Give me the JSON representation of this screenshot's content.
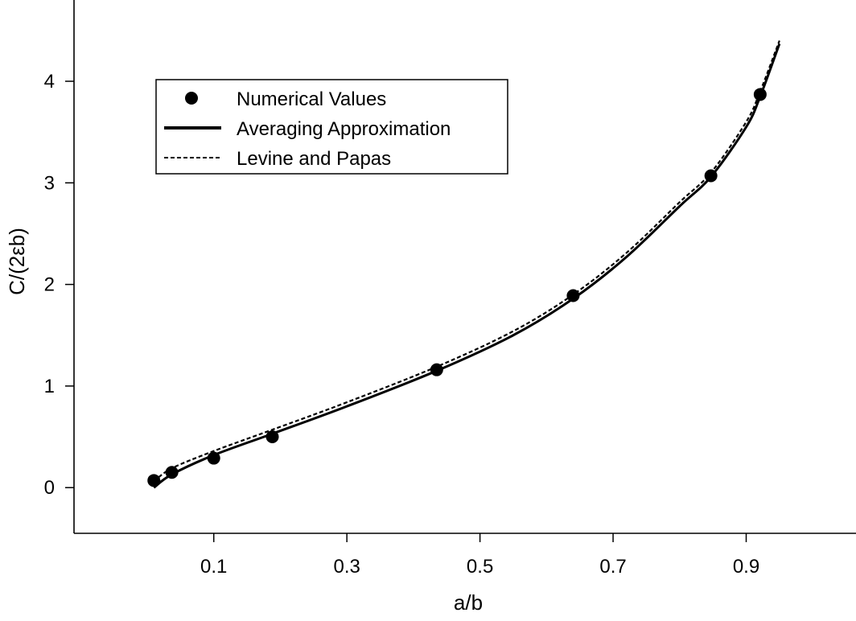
{
  "chart_data": {
    "type": "line",
    "title": "",
    "xlabel": "a/b",
    "ylabel": "C/(2εb)",
    "xlim": [
      -0.11,
      1.065
    ],
    "ylim": [
      -0.45,
      4.8
    ],
    "xticks": [
      0.1,
      0.3,
      0.5,
      0.7,
      0.9
    ],
    "xtick_labels": [
      "0.1",
      "0.3",
      "0.5",
      "0.7",
      "0.9"
    ],
    "yticks": [
      0,
      1,
      2,
      3,
      4
    ],
    "ytick_labels": [
      "0",
      "1",
      "2",
      "3",
      "4"
    ],
    "grid": false,
    "legend_position": "top-left",
    "series": [
      {
        "name": "Numerical Values",
        "style": "markers",
        "color": "#000000",
        "x": [
          0.01,
          0.037,
          0.1,
          0.188,
          0.435,
          0.64,
          0.847,
          0.921
        ],
        "y": [
          0.07,
          0.15,
          0.29,
          0.5,
          1.16,
          1.89,
          3.07,
          3.87
        ]
      },
      {
        "name": "Averaging Approximation",
        "style": "solid",
        "color": "#000000",
        "x": [
          0.01,
          0.037,
          0.1,
          0.188,
          0.3,
          0.435,
          0.55,
          0.64,
          0.72,
          0.8,
          0.847,
          0.9,
          0.921,
          0.95
        ],
        "y": [
          0.0,
          0.13,
          0.32,
          0.53,
          0.8,
          1.15,
          1.5,
          1.86,
          2.27,
          2.77,
          3.06,
          3.55,
          3.85,
          4.37
        ]
      },
      {
        "name": "Levine and Papas",
        "style": "dashed",
        "color": "#000000",
        "x": [
          0.01,
          0.037,
          0.1,
          0.188,
          0.3,
          0.435,
          0.55,
          0.64,
          0.72,
          0.8,
          0.847,
          0.9,
          0.921,
          0.95
        ],
        "y": [
          0.06,
          0.19,
          0.36,
          0.57,
          0.84,
          1.19,
          1.54,
          1.9,
          2.31,
          2.81,
          3.1,
          3.6,
          3.9,
          4.4
        ]
      }
    ]
  }
}
